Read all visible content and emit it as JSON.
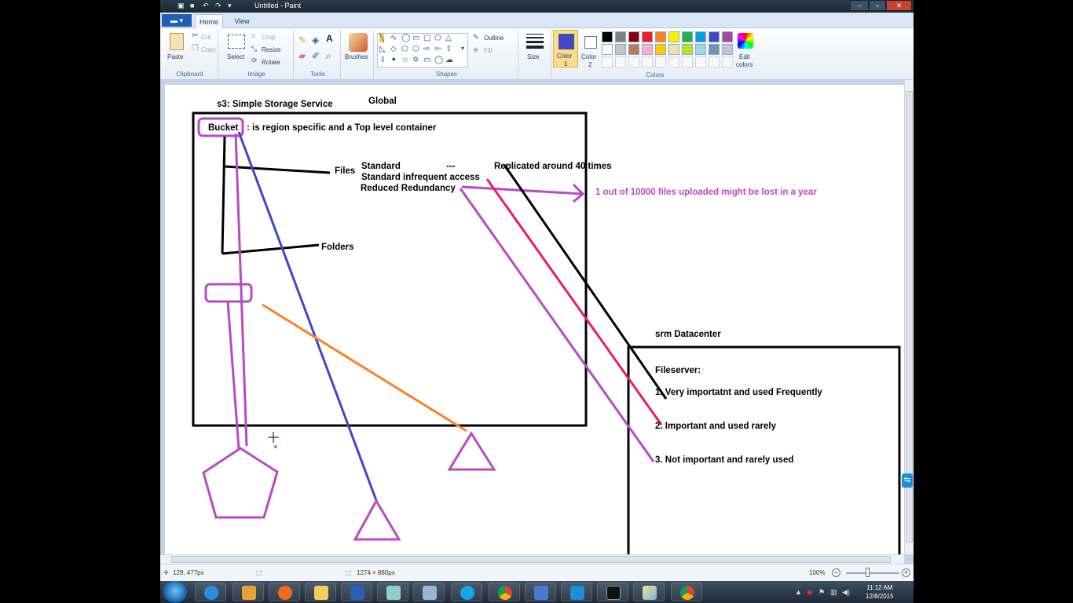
{
  "window": {
    "title": "Untitled - Paint",
    "file_tab": "▾",
    "tabs": [
      "Home",
      "View"
    ]
  },
  "ribbon": {
    "clipboard": {
      "paste": "Paste",
      "cut": "Cut",
      "copy": "Copy",
      "label": "Clipboard"
    },
    "image": {
      "select": "Select",
      "crop": "Crop",
      "resize": "Resize",
      "rotate": "Rotate",
      "label": "Image"
    },
    "tools": {
      "label": "Tools"
    },
    "brushes": {
      "label": "Brushes"
    },
    "shapes": {
      "outline": "Outline",
      "fill": "Fill",
      "label": "Shapes"
    },
    "size": {
      "label": "Size"
    },
    "color1": {
      "line1": "Color",
      "line2": "1",
      "value": "#3f48cc"
    },
    "color2": {
      "line1": "Color",
      "line2": "2",
      "value": "#ffffff"
    },
    "edit_colors": {
      "line1": "Edit",
      "line2": "colors"
    },
    "colors_label": "Colors",
    "palette_row1": [
      "#000000",
      "#7f7f7f",
      "#880015",
      "#ed1c24",
      "#ff7f27",
      "#fff200",
      "#22b14c",
      "#00a2e8",
      "#3f48cc",
      "#a349a4"
    ],
    "palette_row2": [
      "#ffffff",
      "#c3c3c3",
      "#b97a57",
      "#ffaec9",
      "#ffc90e",
      "#efe4b0",
      "#b5e61d",
      "#99d9ea",
      "#7092be",
      "#c8bfe7"
    ]
  },
  "canvas": {
    "title_s3": "s3: Simple Storage Service",
    "global": "Global",
    "bucket": "Bucket",
    "bucket_desc": ": is region specific and a Top level container",
    "files": "Files",
    "standard": "Standard",
    "dash": "---",
    "replicated": "Replicated around 40 times",
    "standard_ia": "Standard infrequent access",
    "reduced": "Reduced Redundancy",
    "lost_note": "1 out of 10000 files uploaded might be lost in a year",
    "folders": "Folders",
    "srm": "srm Datacenter",
    "fileserver": "Fileserver:",
    "item1": "1. Very importatnt  and used Frequently",
    "item2": "2. Important and used rarely",
    "item3": "3. Not important and rarely used"
  },
  "status": {
    "cursor_pos": "129, 477px",
    "image_size": "1274 × 880px",
    "zoom": "100%"
  },
  "taskbar": {
    "time": "11:12 AM",
    "date": "12/8/2015"
  }
}
